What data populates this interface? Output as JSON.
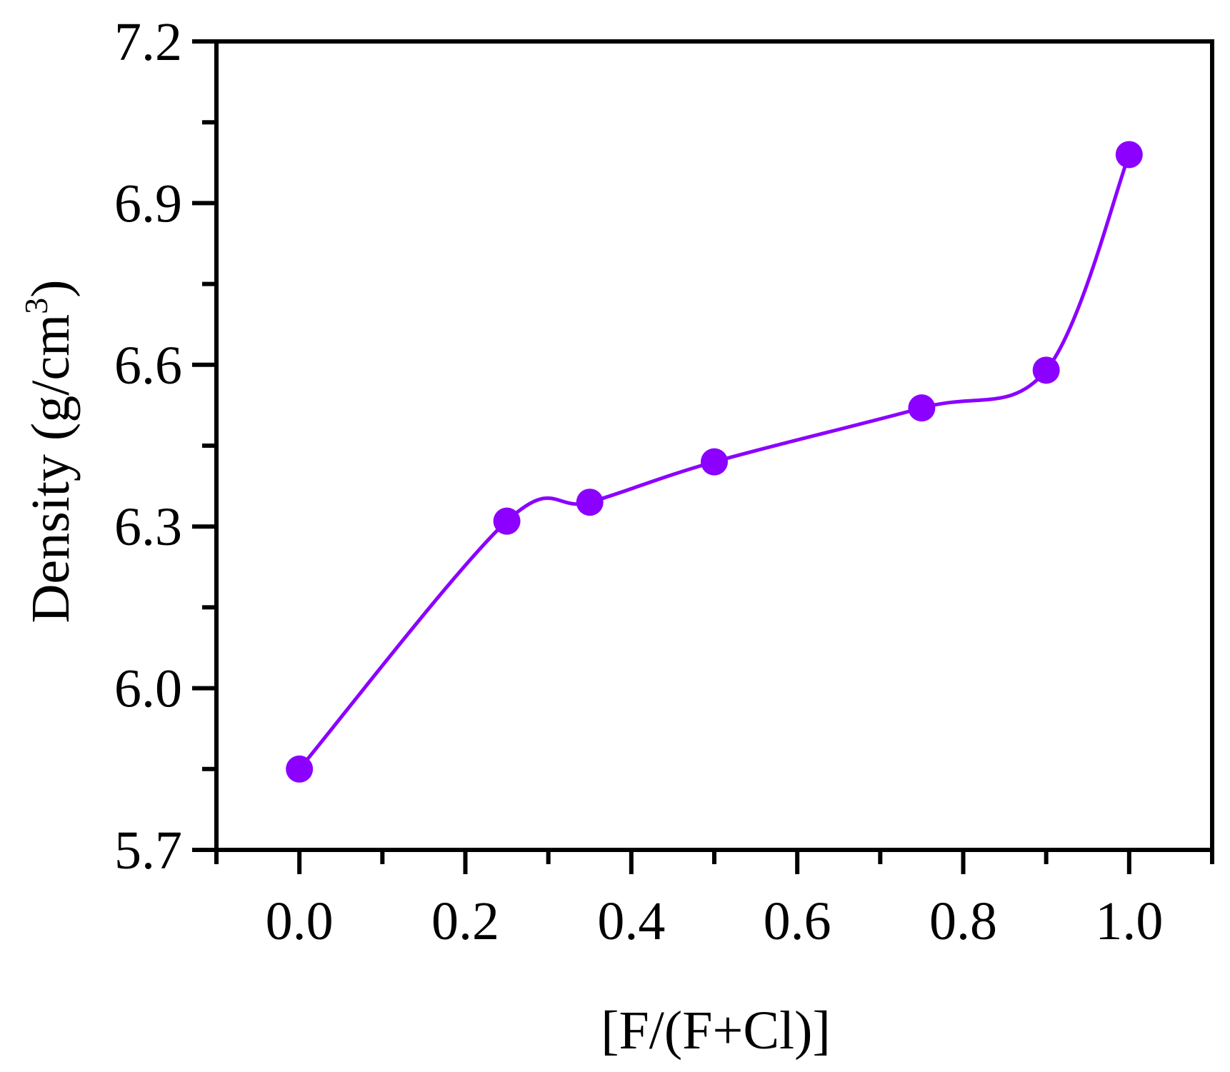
{
  "chart_data": {
    "type": "line",
    "title": "",
    "xlabel": "[F/(F+Cl)]",
    "ylabel": "Density (g/cm",
    "ylabel_superscript": "3",
    "ylabel_suffix": ")",
    "xlim": [
      -0.1,
      1.1
    ],
    "ylim": [
      5.7,
      7.2
    ],
    "x_ticks": [
      "0.0",
      "0.2",
      "0.4",
      "0.6",
      "0.8",
      "1.0"
    ],
    "y_ticks": [
      "5.7",
      "6.0",
      "6.3",
      "6.6",
      "6.9",
      "7.2"
    ],
    "grid": false,
    "series": [
      {
        "color": "#8B00FF",
        "marker": "circle",
        "smooth": true,
        "x": [
          0.0,
          0.25,
          0.35,
          0.5,
          0.75,
          0.9,
          1.0
        ],
        "y": [
          5.85,
          6.31,
          6.345,
          6.42,
          6.52,
          6.59,
          6.99
        ]
      }
    ]
  }
}
